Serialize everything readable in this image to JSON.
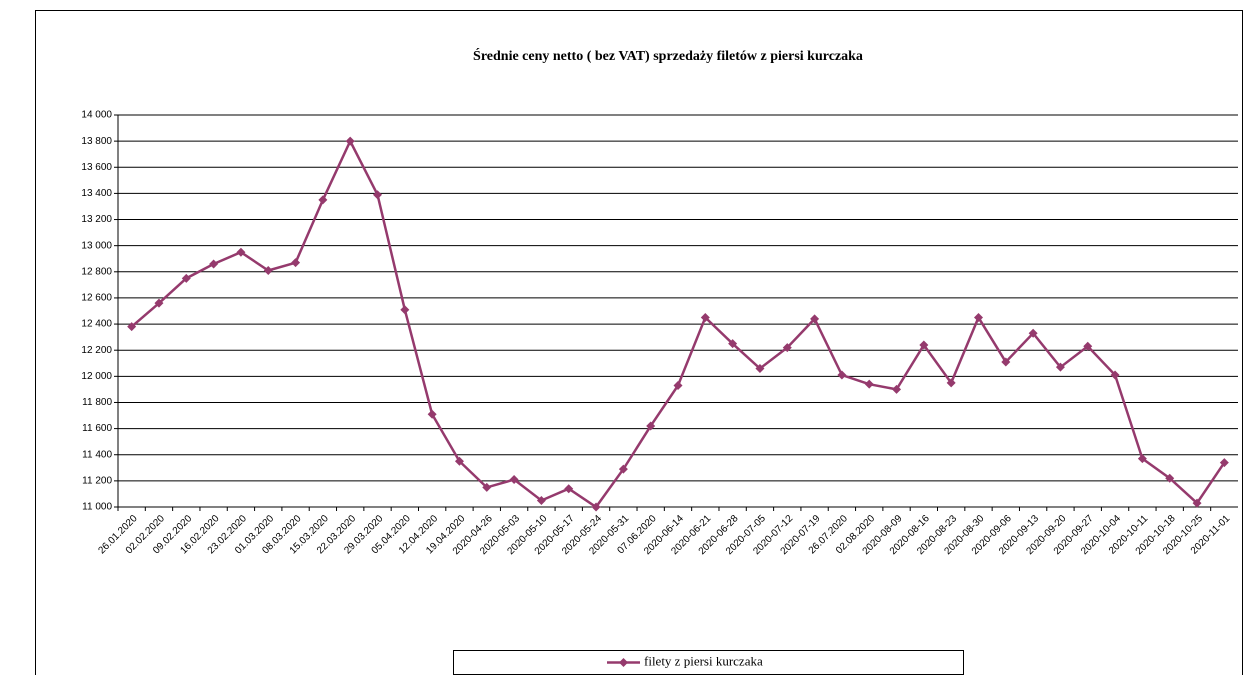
{
  "chart_data": {
    "type": "line",
    "title": "Średnie ceny netto ( bez VAT) sprzedaży  filetów z piersi kurczaka",
    "categories": [
      "26.01.2020",
      "02.02.2020",
      "09.02.2020",
      "16.02.2020",
      "23.02.2020",
      "01.03.2020",
      "08.03.2020",
      "15.03.2020",
      "22.03.2020",
      "29.03.2020",
      "05.04.2020",
      "12.04.2020",
      "19.04.2020",
      "2020-04-26",
      "2020-05-03",
      "2020-05-10",
      "2020-05-17",
      "2020-05-24",
      "2020-05-31",
      "07.06.2020",
      "2020-06-14",
      "2020-06-21",
      "2020-06-28",
      "2020-07-05",
      "2020-07-12",
      "2020-07-19",
      "26.07.2020",
      "02.08.2020",
      "2020-08-09",
      "2020-08-16",
      "2020-08-23",
      "2020-08-30",
      "2020-09-06",
      "2020-09-13",
      "2020-09-20",
      "2020-09-27",
      "2020-10-04",
      "2020-10-11",
      "2020-10-18",
      "2020-10-25",
      "2020-11-01"
    ],
    "series": [
      {
        "name": "filety z piersi kurczaka",
        "color": "#953a6d",
        "values": [
          12380,
          12560,
          12750,
          12860,
          12950,
          12810,
          12870,
          13350,
          13800,
          13390,
          12510,
          11710,
          11350,
          11150,
          11210,
          11050,
          11140,
          11000,
          11290,
          11620,
          11930,
          12450,
          12250,
          12060,
          12220,
          12440,
          12010,
          11940,
          11900,
          12240,
          11950,
          12450,
          12110,
          12330,
          12070,
          12230,
          12010,
          11370,
          11220,
          11030,
          11340
        ]
      }
    ],
    "ylim": [
      11000,
      14000
    ],
    "yticks": [
      {
        "value": 11000,
        "label": "11 000"
      },
      {
        "value": 11200,
        "label": "11 200"
      },
      {
        "value": 11400,
        "label": "11 400"
      },
      {
        "value": 11600,
        "label": "11 600"
      },
      {
        "value": 11800,
        "label": "11 800"
      },
      {
        "value": 12000,
        "label": "12 000"
      },
      {
        "value": 12200,
        "label": "12 200"
      },
      {
        "value": 12400,
        "label": "12 400"
      },
      {
        "value": 12600,
        "label": "12 600"
      },
      {
        "value": 12800,
        "label": "12 800"
      },
      {
        "value": 13000,
        "label": "13 000"
      },
      {
        "value": 13200,
        "label": "13 200"
      },
      {
        "value": 13400,
        "label": "13 400"
      },
      {
        "value": 13600,
        "label": "13 600"
      },
      {
        "value": 13800,
        "label": "13 800"
      },
      {
        "value": 14000,
        "label": "14 000"
      }
    ],
    "grid": true,
    "legend": "bottom"
  }
}
